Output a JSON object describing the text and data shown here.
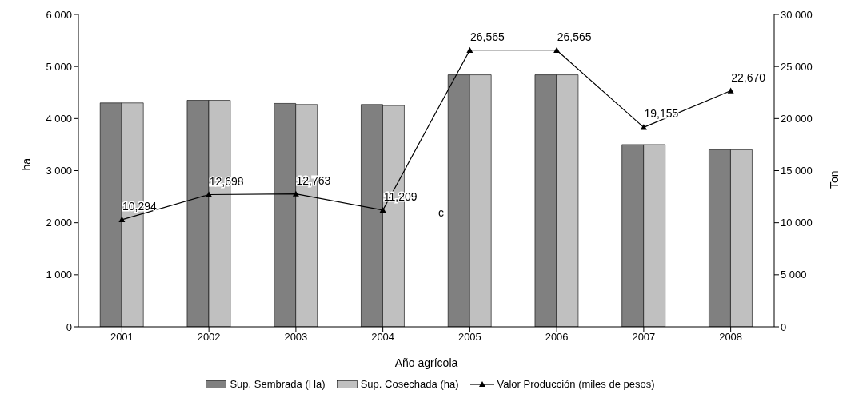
{
  "chart_data": {
    "type": "bar",
    "xlabel": "Año agrícola",
    "ylabel": "ha",
    "y2label": "Ton",
    "categories": [
      "2001",
      "2002",
      "2003",
      "2004",
      "2005",
      "2006",
      "2007",
      "2008"
    ],
    "series": [
      {
        "name": "Sup. Sembrada (Ha)",
        "color": "#808080",
        "values": [
          4300,
          4350,
          4290,
          4270,
          4840,
          4840,
          3500,
          3400
        ]
      },
      {
        "name": "Sup. Cosechada (ha)",
        "color": "#c0c0c0",
        "values": [
          4300,
          4350,
          4270,
          4250,
          4840,
          4840,
          3500,
          3400
        ]
      },
      {
        "name": "Valor Producción (miles de pesos)",
        "type": "line",
        "axis": "y2",
        "color": "#000000",
        "marker": "triangle",
        "values": [
          10294,
          12698,
          12763,
          11209,
          26565,
          26565,
          19155,
          22670
        ],
        "value_labels": [
          "10,294",
          "12,698",
          "12,763",
          "11,209",
          "26,565",
          "26,565",
          "19,155",
          "22,670"
        ]
      }
    ],
    "ylim": [
      0,
      6000
    ],
    "yticks": [
      {
        "value": 0,
        "label": "0"
      },
      {
        "value": 1000,
        "label": "1 000"
      },
      {
        "value": 2000,
        "label": "2 000"
      },
      {
        "value": 3000,
        "label": "3 000"
      },
      {
        "value": 4000,
        "label": "4 000"
      },
      {
        "value": 5000,
        "label": "5 000"
      },
      {
        "value": 6000,
        "label": "6 000"
      }
    ],
    "y2lim": [
      0,
      30000
    ],
    "y2ticks": [
      {
        "value": 0,
        "label": "0"
      },
      {
        "value": 5000,
        "label": "5 000"
      },
      {
        "value": 10000,
        "label": "10 000"
      },
      {
        "value": 15000,
        "label": "15 000"
      },
      {
        "value": 20000,
        "label": "20 000"
      },
      {
        "value": 25000,
        "label": "25 000"
      },
      {
        "value": 30000,
        "label": "30 000"
      }
    ],
    "annotations": [
      "c"
    ],
    "grid": false,
    "legend": "bottom"
  }
}
